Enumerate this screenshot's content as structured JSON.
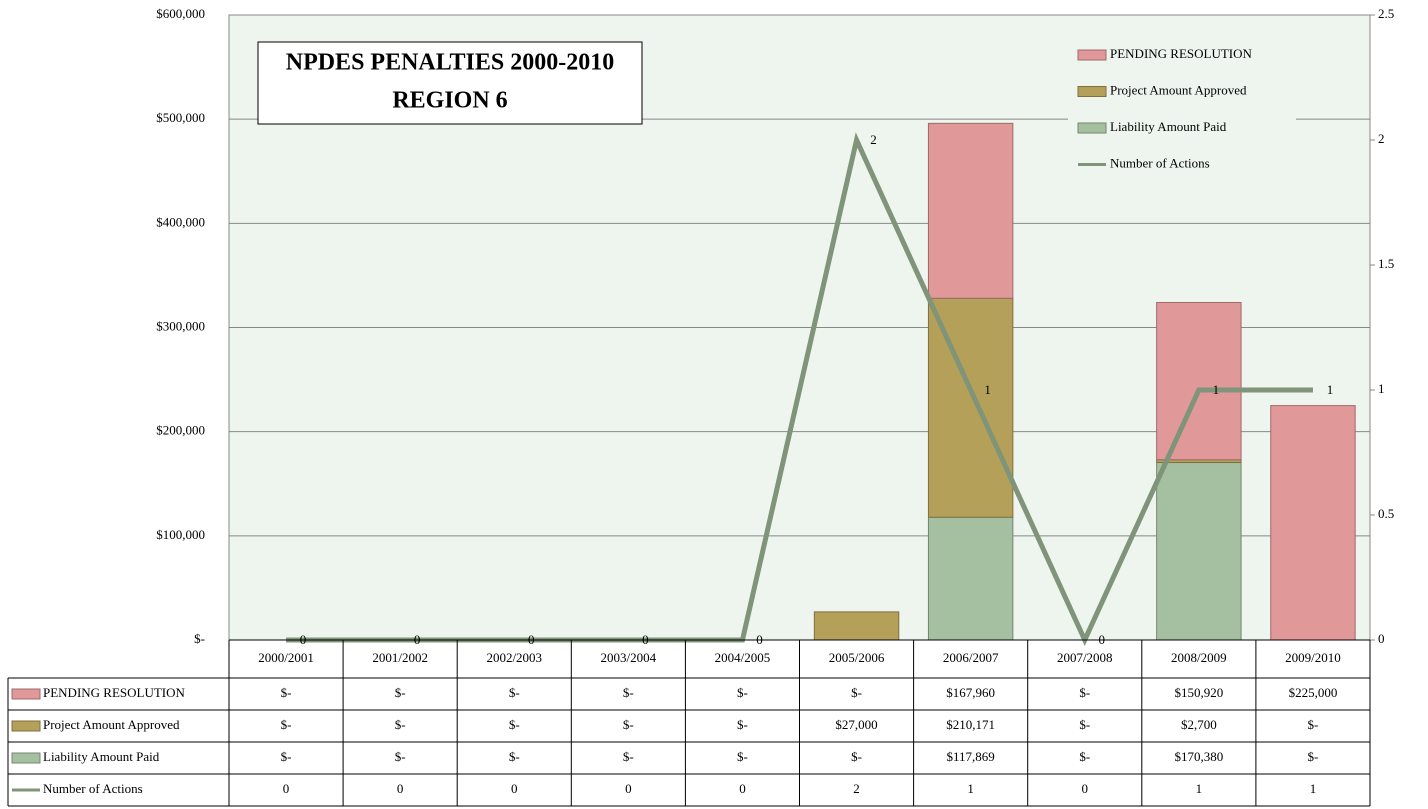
{
  "chart_data": {
    "type": "bar",
    "stacked": true,
    "title": "NPDES PENALTIES 2000-2010",
    "subtitle": "REGION 6",
    "categories": [
      "2000/2001",
      "2001/2002",
      "2002/2003",
      "2003/2004",
      "2004/2005",
      "2005/2006",
      "2006/2007",
      "2007/2008",
      "2008/2009",
      "2009/2010"
    ],
    "series": [
      {
        "name": "PENDING RESOLUTION",
        "type": "bar",
        "color": "#e09898",
        "values": [
          0,
          0,
          0,
          0,
          0,
          0,
          167960,
          0,
          150920,
          225000
        ],
        "value_labels": [
          "$-",
          "$-",
          "$-",
          "$-",
          "$-",
          "$-",
          "$167,960",
          "$-",
          "$150,920",
          "$225,000"
        ]
      },
      {
        "name": "Project Amount Approved",
        "type": "bar",
        "color": "#b5a05a",
        "values": [
          0,
          0,
          0,
          0,
          0,
          27000,
          210171,
          0,
          2700,
          0
        ],
        "value_labels": [
          "$-",
          "$-",
          "$-",
          "$-",
          "$-",
          "$27,000",
          "$210,171",
          "$-",
          "$2,700",
          "$-"
        ]
      },
      {
        "name": "Liability Amount Paid",
        "type": "bar",
        "color": "#a5c0a0",
        "values": [
          0,
          0,
          0,
          0,
          0,
          0,
          117869,
          0,
          170380,
          0
        ],
        "value_labels": [
          "$-",
          "$-",
          "$-",
          "$-",
          "$-",
          "$-",
          "$117,869",
          "$-",
          "$170,380",
          "$-"
        ]
      },
      {
        "name": "Number of Actions",
        "type": "line",
        "axis": "y2",
        "color": "#7f9478",
        "values": [
          0,
          0,
          0,
          0,
          0,
          2,
          1,
          0,
          1,
          1
        ]
      }
    ],
    "ylim": [
      0,
      600000
    ],
    "yticks": [
      {
        "value": 0,
        "label": "$-"
      },
      {
        "value": 100000,
        "label": "$100,000"
      },
      {
        "value": 200000,
        "label": "$200,000"
      },
      {
        "value": 300000,
        "label": "$300,000"
      },
      {
        "value": 400000,
        "label": "$400,000"
      },
      {
        "value": 500000,
        "label": "$500,000"
      },
      {
        "value": 600000,
        "label": "$600,000"
      }
    ],
    "y2lim": [
      0,
      2.5
    ],
    "y2ticks": [
      0,
      0.5,
      1,
      1.5,
      2,
      2.5
    ],
    "grid": true,
    "legend": "upper right",
    "data_table": true
  }
}
